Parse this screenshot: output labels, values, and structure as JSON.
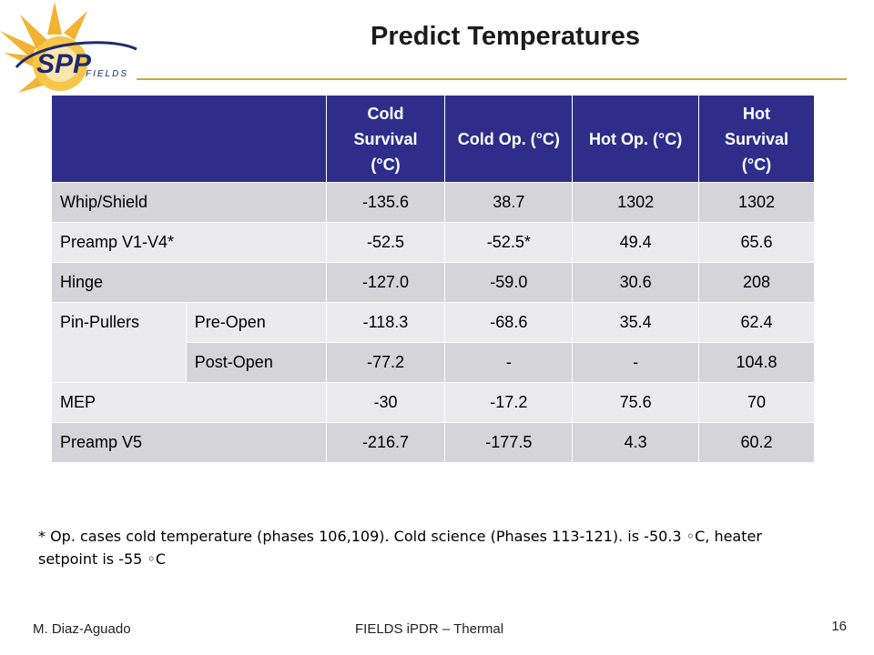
{
  "logo": {
    "brand": "SPP",
    "subtitle": "FIELDS"
  },
  "title": "Predict Temperatures",
  "table": {
    "headers": [
      "",
      "Cold Survival (°C)",
      "Cold Op. (°C)",
      "Hot Op. (°C)",
      "Hot Survival (°C)"
    ],
    "rows": [
      {
        "label": "Whip/Shield",
        "values": [
          "-135.6",
          "38.7",
          "1302",
          "1302"
        ]
      },
      {
        "label": "Preamp V1-V4*",
        "values": [
          "-52.5",
          "-52.5*",
          "49.4",
          "65.6"
        ]
      },
      {
        "label": "Hinge",
        "values": [
          "-127.0",
          "-59.0",
          "30.6",
          "208"
        ]
      },
      {
        "group": "Pin-Pullers",
        "sub": "Pre-Open",
        "values": [
          "-118.3",
          "-68.6",
          "35.4",
          "62.4"
        ]
      },
      {
        "sub": "Post-Open",
        "values": [
          "-77.2",
          "-",
          "-",
          "104.8"
        ]
      },
      {
        "label": "MEP",
        "values": [
          "-30",
          "-17.2",
          "75.6",
          "70"
        ]
      },
      {
        "label": "Preamp V5",
        "values": [
          "-216.7",
          "-177.5",
          "4.3",
          "60.2"
        ]
      }
    ]
  },
  "note": "* Op. cases cold temperature (phases 106,109). Cold science (Phases 113-121).  is -50.3 ◦C, heater setpoint is -55 ◦C",
  "footer": {
    "author": "M. Diaz-Aguado",
    "center": "FIELDS iPDR – Thermal",
    "page": "16"
  },
  "colors": {
    "header_bg": "#2e2e8a",
    "row_dark": "#d4d4d9",
    "row_light": "#ebebee",
    "rule": "#c8aa3c"
  }
}
